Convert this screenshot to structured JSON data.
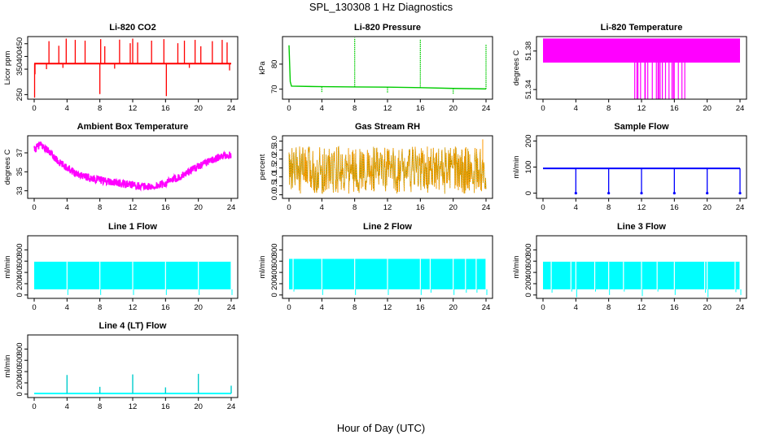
{
  "figure": {
    "title": "SPL_130308  1 Hz Diagnostics",
    "xlabel": "Hour of Day (UTC)"
  },
  "chart_data": [
    {
      "type": "line",
      "title": "Li-820 CO2",
      "ylabel": "Licor ppm",
      "color": "#ff0000",
      "xlim": [
        0,
        24
      ],
      "xticks": [
        0,
        4,
        8,
        12,
        16,
        20,
        24
      ],
      "ylim": [
        232,
        478
      ],
      "yticks": [
        250,
        350,
        400,
        450
      ],
      "series": [
        {
          "baseline": 372,
          "band": 6,
          "spikes": [
            [
              1.8,
              460
            ],
            [
              3.0,
              442
            ],
            [
              3.9,
              470
            ],
            [
              5.0,
              465
            ],
            [
              6.2,
              462
            ],
            [
              8.0,
              252
            ],
            [
              8.1,
              468
            ],
            [
              8.6,
              440
            ],
            [
              10.4,
              466
            ],
            [
              11.7,
              452
            ],
            [
              12.0,
              470
            ],
            [
              12.6,
              455
            ],
            [
              14.3,
              462
            ],
            [
              15.8,
              468
            ],
            [
              16.1,
              244
            ],
            [
              17.5,
              452
            ],
            [
              18.3,
              462
            ],
            [
              19.6,
              465
            ],
            [
              20.3,
              440
            ],
            [
              21.7,
              460
            ],
            [
              22.9,
              465
            ],
            [
              23.5,
              455
            ]
          ],
          "dips": [
            [
              0.05,
              238
            ],
            [
              0.1,
              330
            ],
            [
              1.5,
              350
            ],
            [
              3.5,
              355
            ],
            [
              9.8,
              352
            ],
            [
              18.9,
              355
            ],
            [
              23.8,
              345
            ]
          ]
        }
      ]
    },
    {
      "type": "line",
      "title": "Li-820 Pressure",
      "ylabel": "kPa",
      "color": "#00cc00",
      "xlim": [
        0,
        24
      ],
      "xticks": [
        0,
        4,
        8,
        12,
        16,
        20,
        24
      ],
      "ylim": [
        66,
        91
      ],
      "yticks": [
        70,
        80
      ],
      "series": [
        {
          "start_spike": 87.5,
          "values": [
            [
              0.3,
              71.2
            ],
            [
              4,
              71.0
            ],
            [
              8,
              70.9
            ],
            [
              12,
              70.8
            ],
            [
              16,
              70.6
            ],
            [
              20,
              70.3
            ],
            [
              24,
              70.1
            ]
          ],
          "spikes": [
            [
              8.0,
              90.5
            ],
            [
              16.0,
              89.8
            ],
            [
              24.0,
              88.0
            ]
          ],
          "dips": [
            [
              4.0,
              68.5
            ],
            [
              12.0,
              68.5
            ],
            [
              20.0,
              68.2
            ]
          ]
        }
      ]
    },
    {
      "type": "area",
      "title": "Li-820 Temperature",
      "ylabel": "degrees C",
      "color": "#ff00ff",
      "xlim": [
        0,
        24
      ],
      "xticks": [
        0,
        4,
        8,
        12,
        16,
        20,
        24
      ],
      "ylim": [
        51.33,
        51.395
      ],
      "yticks": [
        51.34,
        51.38
      ],
      "series": [
        {
          "band": [
            51.368,
            51.393
          ],
          "drops_to": 51.33,
          "drop_range": [
            10.5,
            17.5
          ],
          "drop_count": 22
        }
      ]
    },
    {
      "type": "line",
      "title": "Ambient Box Temperature",
      "ylabel": "degrees C",
      "color": "#ff00ff",
      "xlim": [
        0,
        24
      ],
      "xticks": [
        0,
        4,
        8,
        12,
        16,
        20,
        24
      ],
      "ylim": [
        32.2,
        38.8
      ],
      "yticks": [
        33,
        35,
        37
      ],
      "series": [
        {
          "values": [
            [
              0,
              37.3
            ],
            [
              0.7,
              37.9
            ],
            [
              1.5,
              37.4
            ],
            [
              3,
              36.0
            ],
            [
              5,
              34.9
            ],
            [
              7,
              34.3
            ],
            [
              9,
              34.0
            ],
            [
              11,
              33.7
            ],
            [
              13,
              33.5
            ],
            [
              14.5,
              33.4
            ],
            [
              16,
              33.8
            ],
            [
              18,
              34.6
            ],
            [
              20,
              35.6
            ],
            [
              22,
              36.4
            ],
            [
              24,
              36.8
            ]
          ],
          "band": 0.8
        }
      ]
    },
    {
      "type": "line",
      "title": "Gas Stream RH",
      "ylabel": "percent",
      "color": "#ff9900",
      "line_color": "#999900",
      "xlim": [
        0,
        24
      ],
      "xticks": [
        0,
        4,
        8,
        12,
        16,
        20,
        24
      ],
      "ylim": [
        -0.2,
        3.3
      ],
      "yticks": [
        0.0,
        0.5,
        1.0,
        1.5,
        2.0,
        2.5,
        3.0
      ],
      "series": [
        {
          "center": 1.3,
          "range": [
            0.05,
            2.7
          ],
          "max_spike": 3.1
        }
      ]
    },
    {
      "type": "line",
      "title": "Sample Flow",
      "ylabel": "ml/min",
      "color": "#0000ff",
      "xlim": [
        0,
        24
      ],
      "xticks": [
        0,
        4,
        8,
        12,
        16,
        20,
        24
      ],
      "ylim": [
        -20,
        220
      ],
      "yticks": [
        0,
        100,
        200
      ],
      "series": [
        {
          "baseline": 95,
          "band": 6,
          "dips": [
            [
              4,
              0
            ],
            [
              8,
              0
            ],
            [
              12,
              0
            ],
            [
              16,
              0
            ],
            [
              20,
              0
            ],
            [
              24,
              0
            ]
          ]
        }
      ]
    },
    {
      "type": "area",
      "title": "Line 1 Flow",
      "ylabel": "ml/min",
      "color": "#00ffff",
      "xlim": [
        0,
        24
      ],
      "xticks": [
        0,
        4,
        8,
        12,
        16,
        20,
        24
      ],
      "ylim": [
        -60,
        1050
      ],
      "yticks": [
        0,
        200,
        400,
        600,
        800
      ],
      "series": [
        {
          "band": [
            100,
            590
          ],
          "dips": [
            [
              4,
              0
            ],
            [
              8,
              0
            ],
            [
              12,
              0
            ],
            [
              16,
              0
            ],
            [
              20,
              0
            ],
            [
              24,
              0
            ]
          ]
        }
      ]
    },
    {
      "type": "area",
      "title": "Line 2 Flow",
      "ylabel": "ml/min",
      "color": "#00ffff",
      "xlim": [
        0,
        24
      ],
      "xticks": [
        0,
        4,
        8,
        12,
        16,
        20,
        24
      ],
      "ylim": [
        -60,
        1050
      ],
      "yticks": [
        0,
        200,
        400,
        600,
        800
      ],
      "series": [
        {
          "band": [
            100,
            640
          ],
          "dips": [
            [
              0.5,
              60
            ],
            [
              4,
              0
            ],
            [
              8,
              0
            ],
            [
              12,
              0
            ],
            [
              16,
              0
            ],
            [
              17.2,
              40
            ],
            [
              20,
              0
            ],
            [
              21.5,
              40
            ],
            [
              22.8,
              40
            ],
            [
              24,
              0
            ]
          ]
        }
      ]
    },
    {
      "type": "area",
      "title": "Line 3 Flow",
      "ylabel": "ml/min",
      "color": "#00ffff",
      "xlim": [
        0,
        24
      ],
      "xticks": [
        0,
        4,
        8,
        12,
        16,
        20,
        24
      ],
      "ylim": [
        -60,
        1050
      ],
      "yticks": [
        0,
        200,
        400,
        600,
        800
      ],
      "series": [
        {
          "band": [
            100,
            590
          ],
          "dips": [
            [
              1.0,
              40
            ],
            [
              3.4,
              60
            ],
            [
              4,
              -40
            ],
            [
              6.3,
              60
            ],
            [
              8,
              0
            ],
            [
              9.8,
              60
            ],
            [
              12,
              -20
            ],
            [
              13.9,
              60
            ],
            [
              16,
              0
            ],
            [
              19.7,
              40
            ],
            [
              20,
              -40
            ],
            [
              23.4,
              50
            ],
            [
              24,
              0
            ]
          ]
        }
      ]
    },
    {
      "type": "line",
      "title": "Line 4 (LT) Flow",
      "ylabel": "ml/min",
      "color": "#00ffff",
      "line_color": "#00cccc",
      "xlim": [
        0,
        24
      ],
      "xticks": [
        0,
        4,
        8,
        12,
        16,
        20,
        24
      ],
      "ylim": [
        -60,
        1050
      ],
      "yticks": [
        0,
        200,
        400,
        600,
        800
      ],
      "series": [
        {
          "baseline": 12,
          "spikes": [
            [
              4,
              340
            ],
            [
              8,
              130
            ],
            [
              12,
              350
            ],
            [
              16,
              120
            ],
            [
              20,
              360
            ],
            [
              24,
              150
            ]
          ]
        }
      ]
    }
  ]
}
